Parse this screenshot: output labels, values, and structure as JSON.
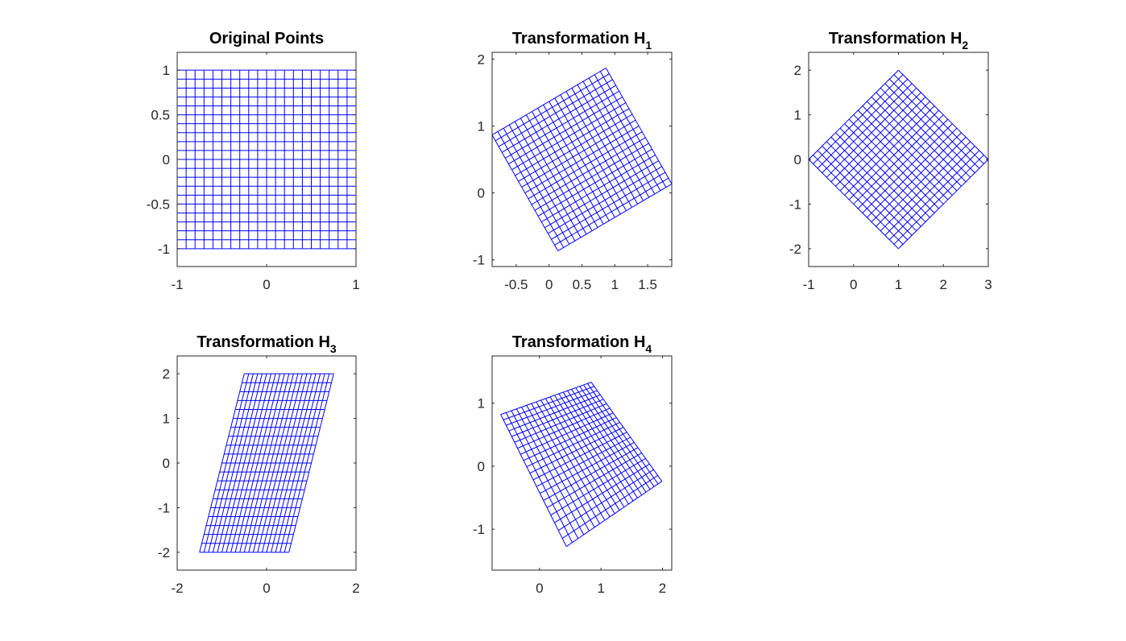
{
  "chart_data": [
    {
      "type": "line",
      "title": "Original Points",
      "title_subscript": "",
      "transform": [
        [
          1,
          0,
          0
        ],
        [
          0,
          1,
          0
        ],
        [
          0,
          0,
          1
        ]
      ],
      "grid_points": {
        "x_range": [
          -1,
          1
        ],
        "y_range": [
          -1,
          1
        ],
        "divisions": 20
      },
      "xlim": [
        -1,
        1
      ],
      "ylim": [
        -1.2,
        1.2
      ],
      "xticks": [
        -1,
        0,
        1
      ],
      "xtick_labels": [
        "-1",
        "0",
        "1"
      ],
      "yticks": [
        1,
        0.5,
        0,
        -0.5,
        -1
      ],
      "ytick_labels": [
        "1",
        "0.5",
        "0",
        "-0.5",
        "-1"
      ]
    },
    {
      "type": "line",
      "title": "Transformation H",
      "title_subscript": "1",
      "transform": [
        [
          0.866,
          -0.5,
          0.5
        ],
        [
          0.5,
          0.866,
          0.5
        ],
        [
          0,
          0,
          1
        ]
      ],
      "grid_points": {
        "x_range": [
          -1,
          1
        ],
        "y_range": [
          -1,
          1
        ],
        "divisions": 20
      },
      "xlim": [
        -0.866,
        1.866
      ],
      "ylim": [
        -1.1,
        2.1
      ],
      "xticks": [
        -0.5,
        0,
        0.5,
        1,
        1.5
      ],
      "xtick_labels": [
        "-0.5",
        "0",
        "0.5",
        "1",
        "1.5"
      ],
      "yticks": [
        2,
        1,
        0,
        -1
      ],
      "ytick_labels": [
        "2",
        "1",
        "0",
        "-1"
      ]
    },
    {
      "type": "line",
      "title": "Transformation H",
      "title_subscript": "2",
      "transform": [
        [
          1,
          -1,
          1
        ],
        [
          1,
          1,
          0
        ],
        [
          0,
          0,
          1
        ]
      ],
      "grid_points": {
        "x_range": [
          -1,
          1
        ],
        "y_range": [
          -1,
          1
        ],
        "divisions": 20
      },
      "xlim": [
        -1,
        3
      ],
      "ylim": [
        -2.4,
        2.4
      ],
      "xticks": [
        -1,
        0,
        1,
        2,
        3
      ],
      "xtick_labels": [
        "-1",
        "0",
        "1",
        "2",
        "3"
      ],
      "yticks": [
        2,
        1,
        0,
        -1,
        -2
      ],
      "ytick_labels": [
        "2",
        "1",
        "0",
        "-1",
        "-2"
      ]
    },
    {
      "type": "line",
      "title": "Transformation H",
      "title_subscript": "3",
      "transform": [
        [
          1,
          0.5,
          0
        ],
        [
          0,
          2,
          0
        ],
        [
          0,
          0,
          1
        ]
      ],
      "grid_points": {
        "x_range": [
          -1,
          1
        ],
        "y_range": [
          -1,
          1
        ],
        "divisions": 20
      },
      "xlim": [
        -2,
        2
      ],
      "ylim": [
        -2.4,
        2.4
      ],
      "xticks": [
        -2,
        0,
        2
      ],
      "xtick_labels": [
        "-2",
        "0",
        "2"
      ],
      "yticks": [
        2,
        1,
        0,
        -1,
        -2
      ],
      "ytick_labels": [
        "2",
        "1",
        "0",
        "-1",
        "-2"
      ]
    },
    {
      "type": "line",
      "title": "Transformation H",
      "title_subscript": "4",
      "transform": [
        [
          0.82,
          -0.49,
          0.68
        ],
        [
          0.39,
          0.92,
          0.29
        ],
        [
          0.1,
          0.1,
          1
        ]
      ],
      "grid_points": {
        "x_range": [
          -1,
          1
        ],
        "y_range": [
          -1,
          1
        ],
        "divisions": 20
      },
      "xlim": [
        -0.77,
        2.15
      ],
      "ylim": [
        -1.65,
        1.75
      ],
      "xticks": [
        0,
        1,
        2
      ],
      "xtick_labels": [
        "0",
        "1",
        "2"
      ],
      "yticks": [
        1,
        0,
        -1
      ],
      "ytick_labels": [
        "1",
        "0",
        "-1"
      ]
    }
  ],
  "colors": {
    "line": "#0000ff",
    "axes": "#262626",
    "background": "#ffffff"
  }
}
